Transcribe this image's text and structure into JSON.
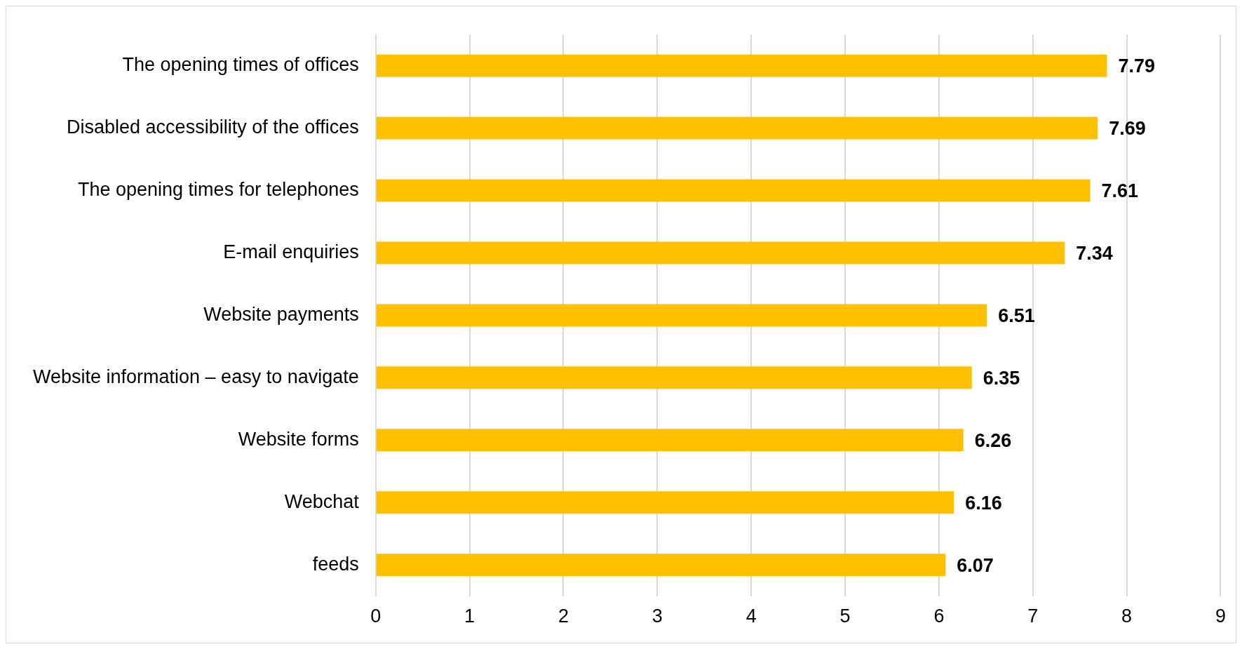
{
  "chart_data": {
    "type": "bar",
    "orientation": "horizontal",
    "categories": [
      "The opening times of offices",
      "Disabled accessibility of the offices",
      "The opening times for telephones",
      "E-mail enquiries",
      "Website payments",
      "Website information – easy to navigate",
      "Website forms",
      "Webchat",
      "feeds"
    ],
    "values": [
      7.79,
      7.69,
      7.61,
      7.34,
      6.51,
      6.35,
      6.26,
      6.16,
      6.07
    ],
    "color": "#ffc000",
    "xlim": [
      0,
      9
    ],
    "xticks": [
      0,
      1,
      2,
      3,
      4,
      5,
      6,
      7,
      8,
      9
    ],
    "grid": "x",
    "data_labels": true,
    "legend": false
  }
}
